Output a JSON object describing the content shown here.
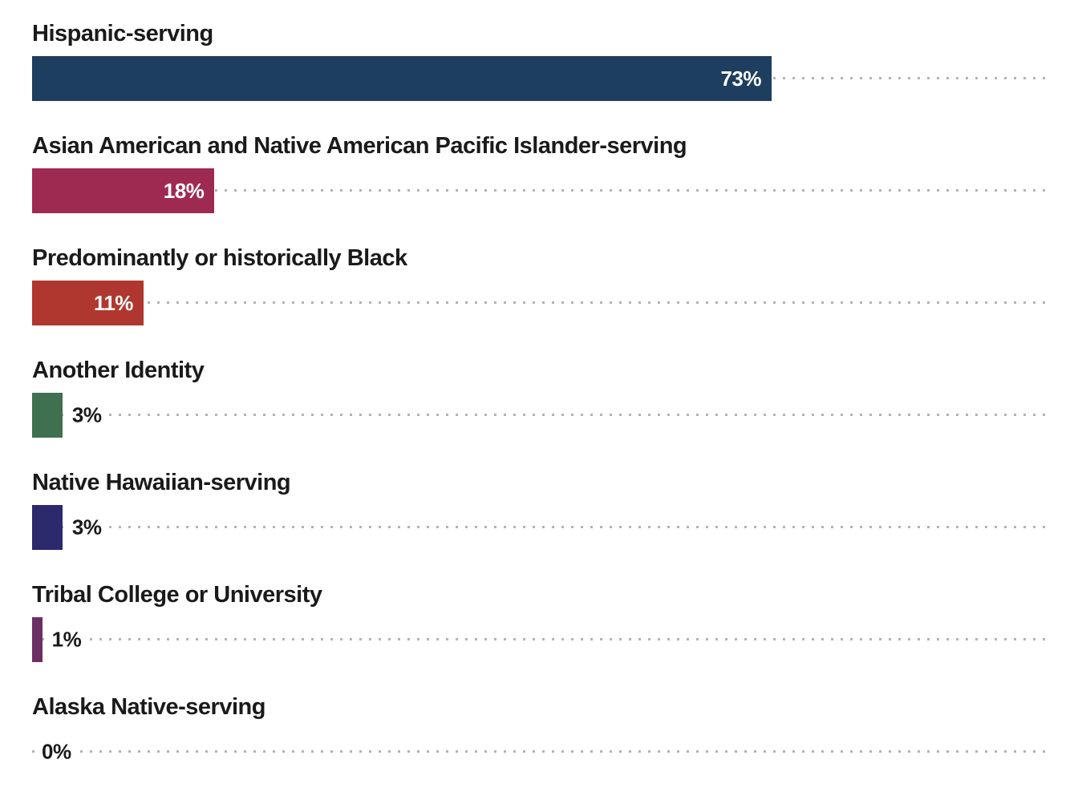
{
  "chart_data": {
    "type": "bar",
    "orientation": "horizontal",
    "title": "",
    "xlabel": "",
    "ylabel": "",
    "xlim": [
      0,
      100
    ],
    "unit": "percent",
    "grid": "dotted reference line per row spanning 0-100%",
    "legend": "none",
    "categories": [
      "Hispanic-serving",
      "Asian American and Native American Pacific Islander-serving",
      "Predominantly or historically Black",
      "Another Identity",
      "Native Hawaiian-serving",
      "Tribal College or University",
      "Alaska Native-serving"
    ],
    "values": [
      73,
      18,
      11,
      3,
      3,
      1,
      0
    ],
    "value_labels": [
      "73%",
      "18%",
      "11%",
      "3%",
      "3%",
      "1%",
      "0%"
    ],
    "bar_colors": [
      "#1e3e5f",
      "#9e2a52",
      "#b0372f",
      "#3f7050",
      "#2c2a6c",
      "#6b2f63",
      null
    ],
    "value_label_placement": [
      "inside",
      "inside",
      "inside",
      "outside",
      "outside",
      "outside",
      "outside"
    ]
  },
  "styles": {
    "dot_color": "#b3b3b3",
    "category_label_color": "#1a1a1a",
    "inside_value_color": "#ffffff",
    "outside_value_color": "#1a1a1a",
    "background_color": "#ffffff"
  }
}
